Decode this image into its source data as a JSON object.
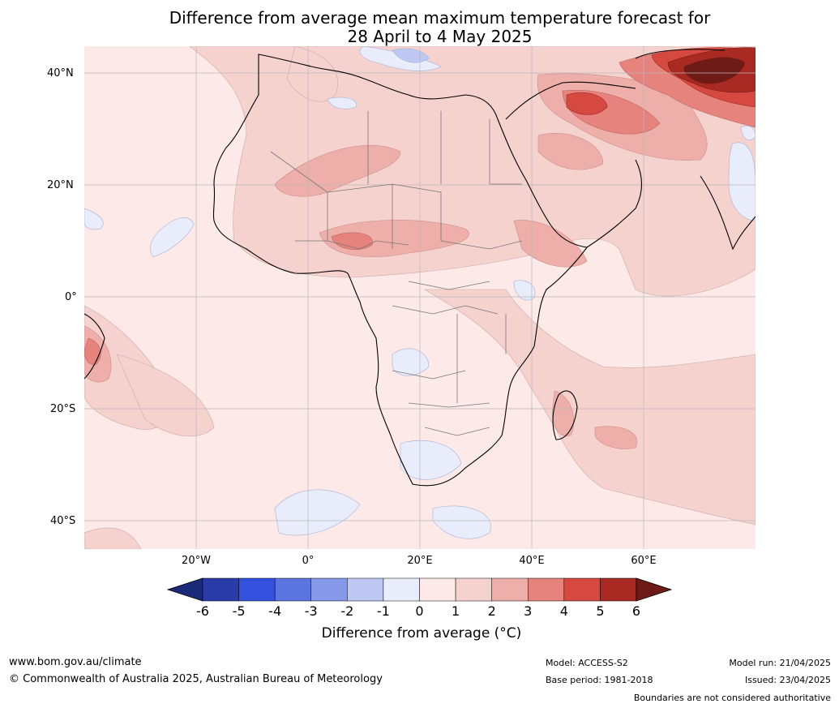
{
  "title": {
    "line1": "Difference from average mean maximum temperature forecast for",
    "line2": "28 April to 4 May 2025"
  },
  "map": {
    "region": "Africa",
    "lat_labels": [
      "40°N",
      "20°N",
      "0°",
      "20°S",
      "40°S"
    ],
    "lon_labels": [
      "20°W",
      "0°",
      "20°E",
      "40°E",
      "60°E"
    ],
    "gridlines": true
  },
  "colorbar": {
    "ticks": [
      "-6",
      "-5",
      "-4",
      "-3",
      "-2",
      "-1",
      "0",
      "1",
      "2",
      "3",
      "4",
      "5",
      "6"
    ],
    "label": "Difference from average (°C)",
    "colors": [
      "#1b2a78",
      "#2a3ca9",
      "#3351dd",
      "#5b74e0",
      "#8599e8",
      "#bec8f2",
      "#e8ecfb",
      "#fce9e8",
      "#f6d2cf",
      "#eeaeaa",
      "#e7837d",
      "#d64940",
      "#a82a22",
      "#6e1a16"
    ]
  },
  "footer": {
    "website": "www.bom.gov.au/climate",
    "copyright": "© Commonwealth of Australia 2025, Australian Bureau of Meteorology",
    "model": "Model: ACCESS-S2",
    "base_period": "Base period: 1981-2018",
    "model_run": "Model run: 21/04/2025",
    "issued": "Issued: 23/04/2025",
    "disclaimer": "Boundaries are not considered authoritative"
  }
}
